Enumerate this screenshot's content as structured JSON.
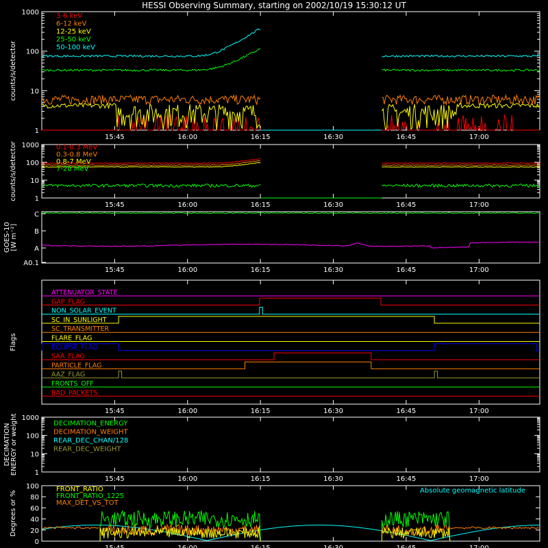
{
  "title": "HESSI Observing Summary, starting on 2002/10/19 15:30:12 UT",
  "time_ticks": [
    "15:45",
    "16:00",
    "16:15",
    "16:30",
    "16:45",
    "17:00"
  ],
  "colors": {
    "white": "#ffffff",
    "red": "#ff0000",
    "orange": "#ff8000",
    "yellow": "#ffff00",
    "green": "#00ff00",
    "cyan": "#00ffff",
    "magenta": "#ff00ff",
    "blue": "#0000ff",
    "olive": "#999933"
  },
  "chart_data": [
    {
      "type": "line",
      "ylabel": "counts/s/detector",
      "y_scale": "log",
      "ylim": [
        1,
        1000
      ],
      "yticks": [
        "1",
        "10",
        "100",
        "1000"
      ],
      "legend": "top-left",
      "x_range": [
        "15:30:12",
        "17:00+"
      ],
      "series": [
        {
          "name": "3-6 keV",
          "color": "#ff0000",
          "approx_level": 1.5
        },
        {
          "name": "6-12 keV",
          "color": "#ff8000",
          "approx_level": 5.5
        },
        {
          "name": "12-25 keV",
          "color": "#ffff00",
          "approx_level": 4
        },
        {
          "name": "25-50 keV",
          "color": "#00ff00",
          "approx_level": 33
        },
        {
          "name": "50-100 keV",
          "color": "#00ffff",
          "approx_level": 75
        }
      ],
      "data_gap": [
        "16:15",
        "16:40"
      ]
    },
    {
      "type": "line",
      "ylabel": "counts/s/detector",
      "y_scale": "log",
      "ylim": [
        1,
        1000
      ],
      "yticks": [
        "1",
        "10",
        "100",
        "1000"
      ],
      "legend": "top-left",
      "series": [
        {
          "name": "0.1-0.3 MeV",
          "color": "#ff0000",
          "approx_level": 90
        },
        {
          "name": "0.3-0.8 MeV",
          "color": "#ff8000",
          "approx_level": 70
        },
        {
          "name": "0.8-7 MeV",
          "color": "#ffff00",
          "approx_level": 55
        },
        {
          "name": "7-20 MeV",
          "color": "#00ff00",
          "approx_level": 5
        }
      ],
      "data_gap": [
        "16:15",
        "16:40"
      ]
    },
    {
      "type": "line",
      "ylabel": "GOES-10 [W m⁻²]",
      "yticks": [
        "A0.1",
        "A",
        "B",
        "C"
      ],
      "series": [
        {
          "name": "",
          "color": "#00ff00",
          "approx_level": "C"
        },
        {
          "name": "",
          "color": "#ff00ff",
          "approx_level": "A"
        }
      ]
    },
    {
      "type": "line",
      "ylabel": "Flags",
      "series": [
        {
          "name": "ATTENUATOR_STATE",
          "color": "#ff00ff",
          "high": []
        },
        {
          "name": "GAP_FLAG",
          "color": "#ff0000",
          "high": [
            [
              "16:15",
              "16:40"
            ]
          ]
        },
        {
          "name": "NON_SOLAR_EVENT",
          "color": "#00ffff",
          "high": [
            [
              "16:15",
              "16:15:30"
            ]
          ]
        },
        {
          "name": "SC_IN_SUNLIGHT",
          "color": "#ffff00",
          "high": [
            [
              "15:46",
              "16:51"
            ]
          ]
        },
        {
          "name": "SC_TRANSMITTER",
          "color": "#ff8000",
          "high": []
        },
        {
          "name": "FLARE_FLAG",
          "color": "#ffff00",
          "high": []
        },
        {
          "name": "ECLIPSE_FLAG",
          "color": "#0000ff",
          "high": [
            [
              "15:30",
              "15:46"
            ],
            [
              "16:51",
              "17:12"
            ]
          ]
        },
        {
          "name": "SAA_FLAG",
          "color": "#ff0000",
          "high": [
            [
              "16:18",
              "16:38"
            ]
          ]
        },
        {
          "name": "PARTICLE_FLAG",
          "color": "#ff8000",
          "high": [
            [
              "16:12",
              "16:38"
            ]
          ]
        },
        {
          "name": "AAZ_FLAG",
          "color": "#999933",
          "high": [
            [
              "15:46",
              "15:46:30"
            ],
            [
              "16:51",
              "16:51:30"
            ]
          ]
        },
        {
          "name": "FRONTS_OFF",
          "color": "#00ff00",
          "high": []
        },
        {
          "name": "BAD_PACKETS",
          "color": "#ff0000",
          "high": []
        }
      ]
    },
    {
      "type": "line",
      "ylabel": "DECIMATION ENERGY or weight",
      "y_scale": "log",
      "ylim": [
        1,
        1000
      ],
      "yticks": [
        "1",
        "10",
        "100",
        "1000"
      ],
      "legend": "top-left",
      "series": [
        {
          "name": "DECIMATION_ENERGY",
          "color": "#00ff00"
        },
        {
          "name": "DECIMATION_WEIGHT",
          "color": "#ff8000"
        },
        {
          "name": "REAR_DEC_CHAN/128",
          "color": "#00ffff"
        },
        {
          "name": "REAR_DEC_WEIGHT",
          "color": "#999933"
        }
      ]
    },
    {
      "type": "line",
      "ylabel": "Degrees or %",
      "ylim": [
        0,
        100
      ],
      "yticks": [
        "0",
        "20",
        "40",
        "60",
        "80",
        "100"
      ],
      "legend": "top-left",
      "annotation": "Absolute geomagnetic latitude",
      "series": [
        {
          "name": "FRONT_RATIO",
          "color": "#ffff00",
          "approx_level": 15
        },
        {
          "name": "FRONT_RATIO_1225",
          "color": "#00ff00",
          "approx_level": 40
        },
        {
          "name": "MAX_DET_VS_TOT",
          "color": "#ff8000",
          "approx_level": 20
        },
        {
          "name": "Absolute geomagnetic latitude",
          "color": "#00ffff",
          "approx_range": [
            0,
            30
          ]
        }
      ]
    }
  ]
}
